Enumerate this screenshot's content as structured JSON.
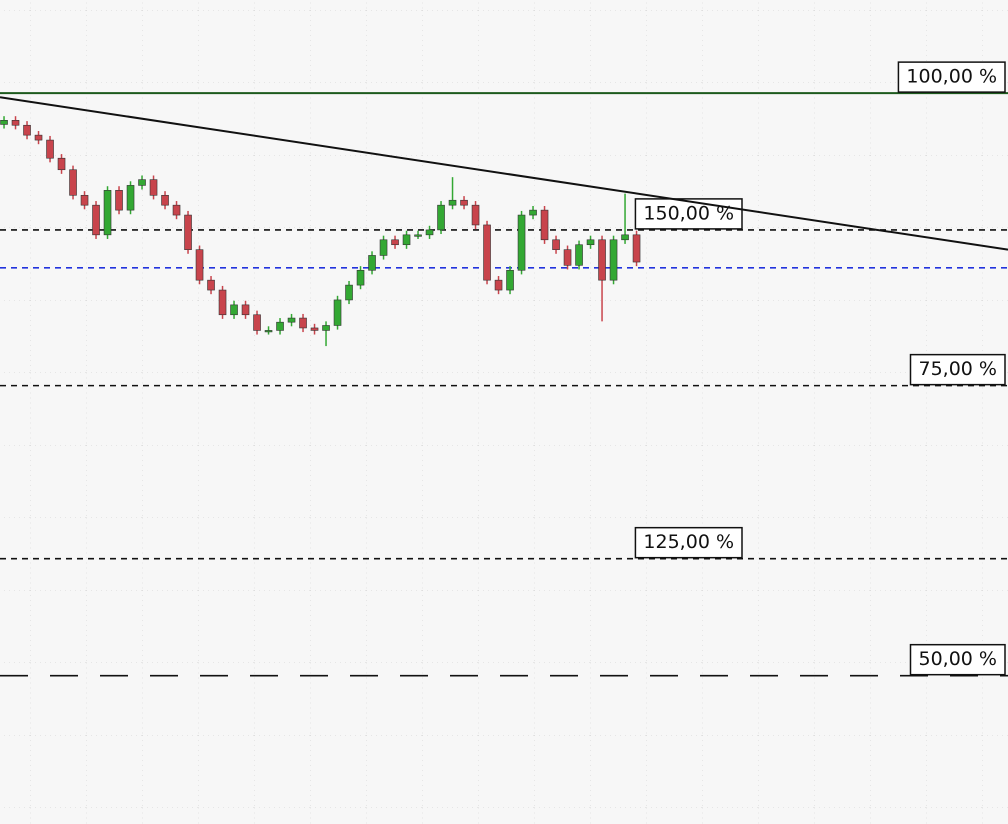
{
  "chart_data": {
    "type": "candlestick",
    "xlim": [
      -0.35,
      87.3
    ],
    "ylim": [
      0,
      100
    ],
    "up_color": "#33a833",
    "down_color": "#c8444c",
    "open": [
      84.9,
      85.4,
      84.8,
      83.6,
      83.0,
      80.8,
      79.4,
      76.3,
      75.1,
      71.5,
      76.9,
      74.5,
      77.5,
      78.2,
      76.3,
      75.1,
      73.9,
      69.7,
      66.0,
      64.8,
      61.8,
      63.0,
      61.8,
      59.9,
      59.9,
      60.9,
      61.4,
      60.2,
      59.9,
      60.5,
      63.6,
      65.4,
      67.2,
      69.0,
      70.9,
      70.3,
      71.5,
      71.5,
      72.1,
      75.1,
      75.7,
      75.1,
      72.7,
      66.0,
      64.8,
      67.2,
      73.9,
      74.5,
      70.9,
      69.7,
      67.8,
      70.3,
      70.9,
      66.0,
      70.9,
      71.5
    ],
    "high": [
      85.9,
      85.9,
      85.3,
      84.1,
      83.5,
      81.3,
      79.9,
      76.8,
      75.6,
      77.4,
      77.4,
      78.0,
      78.7,
      78.7,
      76.8,
      75.6,
      74.4,
      70.2,
      66.5,
      65.3,
      63.5,
      63.5,
      62.3,
      60.4,
      61.4,
      61.9,
      61.9,
      60.7,
      61.0,
      64.1,
      65.9,
      67.7,
      69.5,
      71.4,
      71.4,
      72.0,
      72.0,
      72.6,
      75.6,
      78.5,
      76.2,
      75.6,
      73.2,
      66.5,
      67.7,
      74.4,
      75.0,
      75.0,
      71.4,
      70.2,
      70.8,
      71.4,
      71.4,
      71.4,
      76.5,
      72.0
    ],
    "low": [
      84.4,
      84.3,
      83.1,
      82.5,
      80.3,
      78.9,
      75.8,
      74.6,
      71.0,
      71.0,
      74.0,
      74.0,
      77.0,
      75.8,
      74.6,
      73.4,
      69.2,
      65.5,
      64.3,
      61.3,
      61.3,
      61.3,
      59.4,
      59.4,
      59.4,
      60.4,
      59.7,
      59.4,
      58.0,
      60.0,
      63.1,
      64.9,
      66.7,
      68.5,
      69.8,
      69.8,
      71.0,
      71.0,
      71.6,
      74.6,
      74.6,
      72.2,
      65.5,
      64.3,
      64.3,
      66.7,
      73.4,
      70.4,
      69.2,
      67.3,
      67.3,
      69.8,
      61.0,
      65.5,
      70.4,
      67.7
    ],
    "close": [
      85.4,
      84.8,
      83.6,
      83.0,
      80.8,
      79.4,
      76.3,
      75.1,
      71.5,
      76.9,
      74.5,
      77.5,
      78.2,
      76.3,
      75.1,
      73.9,
      69.7,
      66.0,
      64.8,
      61.8,
      63.0,
      61.8,
      59.9,
      59.9,
      60.9,
      61.4,
      60.2,
      59.9,
      60.5,
      63.6,
      65.4,
      67.2,
      69.0,
      70.9,
      70.3,
      71.5,
      71.5,
      72.1,
      75.1,
      75.7,
      75.1,
      72.7,
      66.0,
      64.8,
      67.2,
      73.9,
      74.5,
      70.9,
      69.7,
      67.8,
      70.3,
      70.9,
      66.0,
      70.9,
      71.5,
      68.2
    ],
    "levels": [
      {
        "value": 88.7,
        "label": "100,00 %",
        "color": "#1d5a1d",
        "dash": "solid"
      },
      {
        "value": 72.1,
        "label": "150,00 %",
        "color": "#111111",
        "dash": "short"
      },
      {
        "value": 53.2,
        "label": "75,00 %",
        "color": "#111111",
        "dash": "short"
      },
      {
        "value": 32.2,
        "label": "125,00 %",
        "color": "#111111",
        "dash": "short"
      },
      {
        "value": 18.0,
        "label": "50,00 %",
        "color": "#111111",
        "dash": "long"
      },
      {
        "value": 67.5,
        "color": "#2233dd",
        "dash": "short"
      }
    ],
    "trendline": {
      "x": [
        -0.35,
        87.3
      ],
      "y": [
        88.2,
        69.7
      ],
      "color": "#111111"
    }
  }
}
